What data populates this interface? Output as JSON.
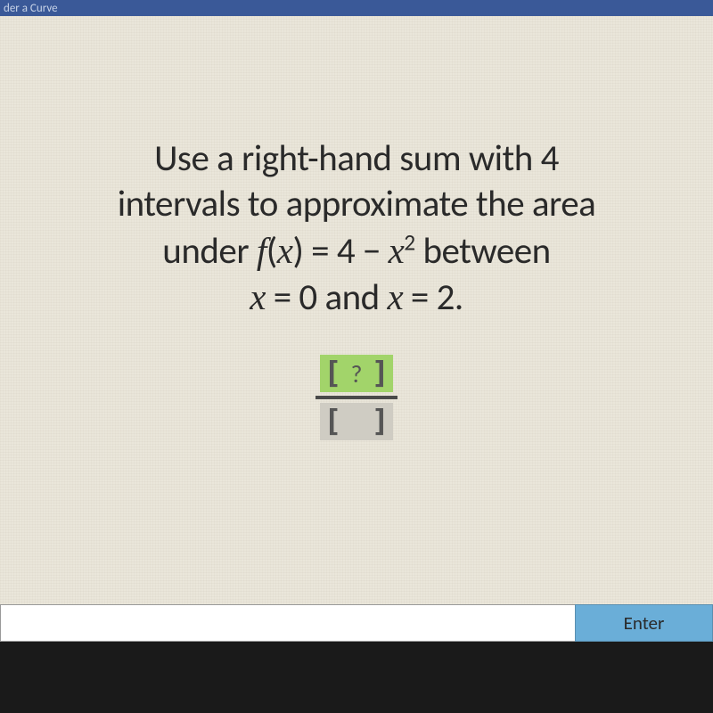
{
  "header": {
    "title": "der a Curve"
  },
  "problem": {
    "line1_pre": "Use a right-hand sum with ",
    "intervals": "4",
    "line2": "intervals to approximate the area",
    "line3_pre": "under ",
    "func_f": "f",
    "func_open": "(",
    "func_x": "x",
    "func_close": ") = 4 − ",
    "func_x2": "x",
    "func_exp": "2",
    "line3_post": " between",
    "line4_x1var": "x",
    "line4_eq1": " = 0 and ",
    "line4_x2var": "x",
    "line4_eq2": " = 2."
  },
  "fraction": {
    "numerator": "?",
    "denominator": " "
  },
  "input": {
    "value": "",
    "enter_label": "Enter"
  },
  "colors": {
    "header_bg": "#3a5998",
    "content_bg": "#eae6da",
    "numerator_bg": "#a2d46a",
    "denominator_bg": "#cfccc3",
    "enter_bg": "#6aaed8",
    "bottom_bg": "#1a1a1a"
  }
}
